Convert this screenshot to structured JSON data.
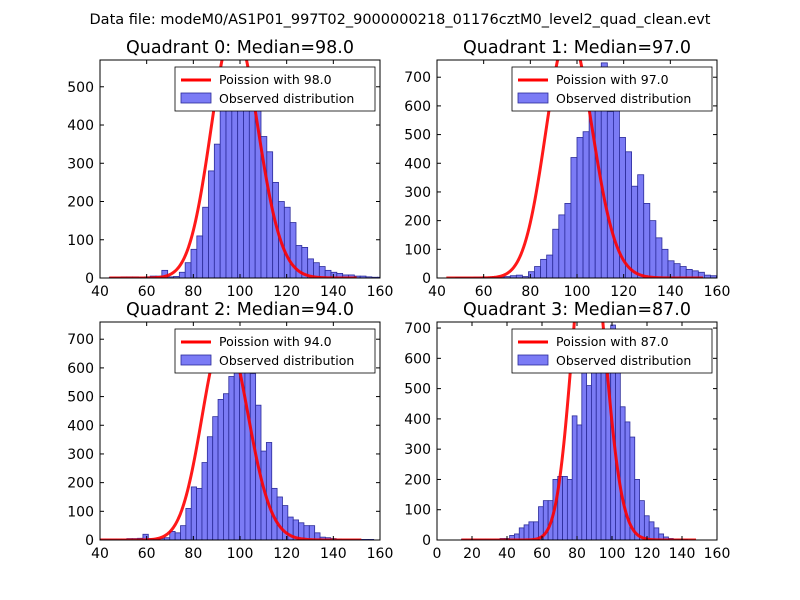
{
  "suptitle": "Data file: modeM0/AS1P01_997T02_9000000218_01176cztM0_level2_quad_clean.evt",
  "colors": {
    "bar_fill": "#7b7bf5",
    "bar_edge": "#2b2b9a",
    "line": "#ff0000",
    "line_light": "#ff8080"
  },
  "chart_data": [
    {
      "type": "bar",
      "title": "Quadrant 0: Median=98.0",
      "xlim": [
        40,
        160
      ],
      "ylim": [
        0,
        570
      ],
      "xticks": [
        40,
        60,
        80,
        100,
        120,
        140,
        160
      ],
      "yticks": [
        0,
        100,
        200,
        300,
        400,
        500
      ],
      "legend": {
        "line": "Poission with 98.0",
        "bars": "Observed distribution",
        "loc": "top-right"
      },
      "hist": {
        "start": 44,
        "width": 2.5,
        "values": [
          2,
          2,
          3,
          3,
          3,
          2,
          3,
          5,
          5,
          20,
          3,
          4,
          15,
          40,
          75,
          110,
          185,
          280,
          350,
          440,
          510,
          520,
          550,
          515,
          535,
          480,
          370,
          330,
          250,
          200,
          185,
          145,
          85,
          80,
          50,
          40,
          30,
          20,
          15,
          12,
          8,
          8,
          5,
          5,
          3,
          2,
          2,
          2,
          2
        ]
      },
      "poisson": {
        "mean": 98.0,
        "x_range": [
          44,
          150
        ]
      }
    },
    {
      "type": "bar",
      "title": "Quadrant 1: Median=97.0",
      "xlim": [
        40,
        160
      ],
      "ylim": [
        0,
        760
      ],
      "xticks": [
        40,
        60,
        80,
        100,
        120,
        140,
        160
      ],
      "yticks": [
        0,
        100,
        200,
        300,
        400,
        500,
        600,
        700
      ],
      "legend": {
        "line": "Poission with 97.0",
        "bars": "Observed distribution",
        "loc": "top-right"
      },
      "hist": {
        "start": 48,
        "width": 2.6,
        "values": [
          2,
          2,
          2,
          3,
          3,
          3,
          4,
          4,
          5,
          8,
          10,
          5,
          22,
          40,
          65,
          80,
          170,
          220,
          260,
          420,
          490,
          510,
          620,
          610,
          750,
          580,
          690,
          490,
          440,
          320,
          360,
          260,
          200,
          140,
          100,
          60,
          50,
          40,
          30,
          25,
          20,
          10,
          8,
          5,
          4,
          3,
          2,
          2
        ]
      },
      "poisson": {
        "mean": 97.0,
        "x_range": [
          44,
          154
        ]
      }
    },
    {
      "type": "bar",
      "title": "Quadrant 2: Median=94.0",
      "xlim": [
        40,
        160
      ],
      "ylim": [
        0,
        760
      ],
      "xticks": [
        40,
        60,
        80,
        100,
        120,
        140,
        160
      ],
      "yticks": [
        0,
        100,
        200,
        300,
        400,
        500,
        600,
        700
      ],
      "legend": {
        "line": "Poission with 94.0",
        "bars": "Observed distribution",
        "loc": "top-right"
      },
      "hist": {
        "start": 40,
        "width": 2.3,
        "values": [
          3,
          3,
          3,
          3,
          3,
          5,
          5,
          6,
          20,
          5,
          4,
          5,
          8,
          30,
          25,
          50,
          110,
          185,
          180,
          270,
          360,
          430,
          490,
          510,
          570,
          670,
          590,
          620,
          580,
          470,
          310,
          340,
          180,
          150,
          120,
          80,
          70,
          60,
          50,
          50,
          25,
          10,
          8,
          5,
          3,
          2,
          2,
          2,
          2,
          2,
          2
        ]
      },
      "poisson": {
        "mean": 94.0,
        "x_range": [
          40,
          152
        ]
      }
    },
    {
      "type": "bar",
      "title": "Quadrant 3: Median=87.0",
      "xlim": [
        0,
        160
      ],
      "ylim": [
        0,
        720
      ],
      "xticks": [
        0,
        20,
        40,
        60,
        80,
        100,
        120,
        140,
        160
      ],
      "yticks": [
        0,
        100,
        200,
        300,
        400,
        500,
        600,
        700
      ],
      "legend": {
        "line": "Poission with 87.0",
        "bars": "Observed distribution",
        "loc": "top-right"
      },
      "hist": {
        "start": 14,
        "width": 2.75,
        "values": [
          3,
          3,
          3,
          3,
          3,
          3,
          3,
          3,
          5,
          5,
          15,
          20,
          40,
          50,
          60,
          60,
          110,
          130,
          130,
          200,
          210,
          210,
          200,
          410,
          380,
          590,
          510,
          640,
          580,
          660,
          600,
          710,
          680,
          440,
          390,
          340,
          200,
          130,
          80,
          60,
          40,
          20,
          10,
          5,
          3,
          3,
          2
        ]
      },
      "poisson": {
        "mean": 87.0,
        "x_range": [
          14,
          148
        ]
      }
    }
  ]
}
